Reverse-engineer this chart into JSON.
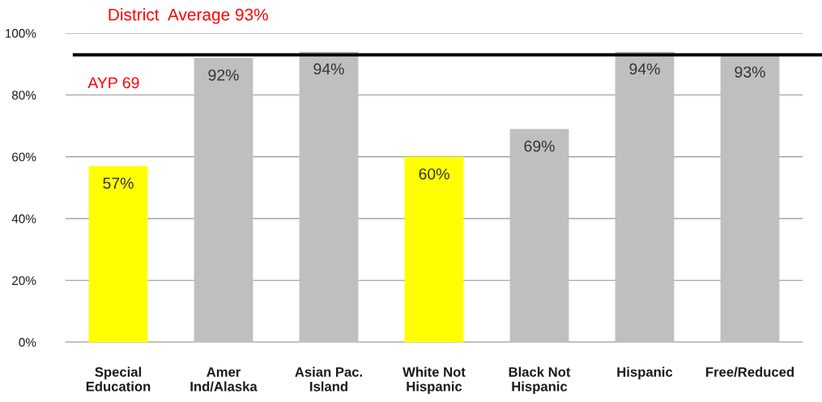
{
  "chart_data": {
    "type": "bar",
    "categories": [
      "Special\nEducation",
      "Amer\nInd/Alaska",
      "Asian Pac.\nIsland",
      "White Not\nHispanic",
      "Black Not\nHispanic",
      "Hispanic",
      "Free/Reduced"
    ],
    "values": [
      57,
      92,
      94,
      60,
      69,
      94,
      93
    ],
    "colors": [
      "#ffff00",
      "#bfbfbf",
      "#bfbfbf",
      "#ffff00",
      "#bfbfbf",
      "#bfbfbf",
      "#bfbfbf"
    ],
    "value_labels": [
      "57%",
      "92%",
      "94%",
      "60%",
      "69%",
      "94%",
      "93%"
    ],
    "ylim": [
      0,
      100
    ],
    "yticks": [
      {
        "value": 0,
        "label": "0%"
      },
      {
        "value": 20,
        "label": "20%"
      },
      {
        "value": 40,
        "label": "40%"
      },
      {
        "value": 60,
        "label": "60%"
      },
      {
        "value": 80,
        "label": "80%"
      },
      {
        "value": 100,
        "label": "100%"
      }
    ],
    "grid": "y",
    "ref_lines": [
      {
        "axis": "y",
        "value": 93,
        "label": "District  Average 93%",
        "color": "#000000"
      }
    ],
    "annotations": [
      "AYP 69"
    ]
  }
}
